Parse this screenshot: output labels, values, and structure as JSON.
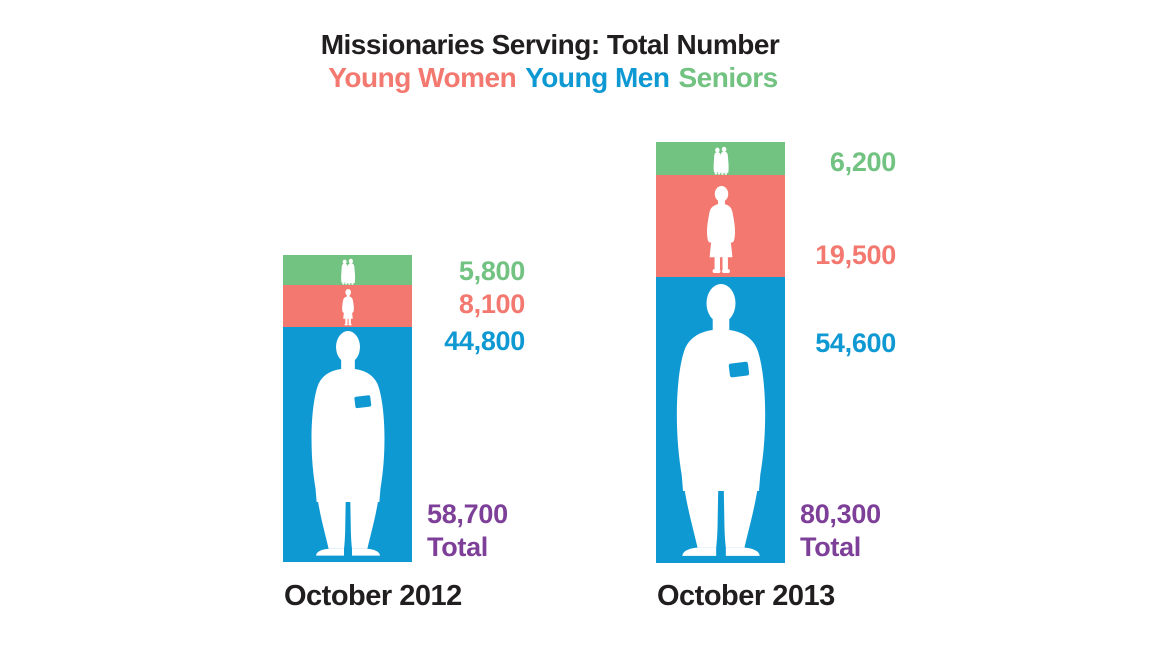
{
  "title": "Missionaries Serving: Total Number",
  "legend": [
    {
      "label": "Young Women",
      "color": "#f3786f"
    },
    {
      "label": "Young Men",
      "color": "#0f99d3"
    },
    {
      "label": "Seniors",
      "color": "#72c282"
    }
  ],
  "colors": {
    "text": "#211e1f",
    "green": "#72c282",
    "salmon": "#f3786f",
    "blue": "#0f99d3",
    "purple": "#7d3f98",
    "silhouette": "#ffffff",
    "background": "#ffffff"
  },
  "icons": {
    "seniors": "senior-couple-silhouette",
    "young_women": "sister-missionary-silhouette",
    "young_men": "elder-missionary-silhouette"
  },
  "chart_data": {
    "type": "bar",
    "stacked": true,
    "orientation": "vertical",
    "note": "series listed top-to-bottom within each stacked bar; white missionary silhouettes drawn inside segments",
    "categories": [
      "October 2012",
      "October 2013"
    ],
    "series": [
      {
        "name": "Seniors",
        "color": "#72c282",
        "values": [
          5800,
          6200
        ],
        "labels": [
          "5,800",
          "6,200"
        ]
      },
      {
        "name": "Young Women",
        "color": "#f3786f",
        "values": [
          8100,
          19500
        ],
        "labels": [
          "8,100",
          "19,500"
        ]
      },
      {
        "name": "Young Men",
        "color": "#0f99d3",
        "values": [
          44800,
          54600
        ],
        "labels": [
          "44,800",
          "54,600"
        ]
      }
    ],
    "totals": {
      "word": "Total",
      "color": "#7d3f98",
      "values": [
        58700,
        80300
      ],
      "labels": [
        "58,700",
        "80,300"
      ]
    },
    "ylim": [
      0,
      80300
    ],
    "grid": false,
    "legend_position": "top-center"
  }
}
